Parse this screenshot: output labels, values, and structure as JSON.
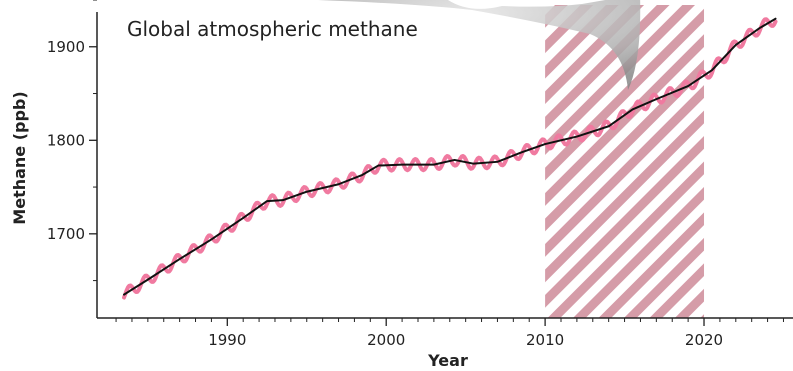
{
  "chart_data": {
    "type": "line",
    "title": "Global atmospheric methane",
    "xlabel": "Year",
    "ylabel": "Methane (ppb)",
    "xlim": [
      1981.8,
      2025.6
    ],
    "ylim": [
      1610,
      1950
    ],
    "x_ticks": [
      1990,
      2000,
      2010,
      2020
    ],
    "y_ticks": [
      1700,
      1800,
      1900
    ],
    "grid": false,
    "highlight_region": {
      "x_start": 2010,
      "x_end": 2020,
      "fill": "hatched",
      "color": "#c9808f"
    },
    "series": [
      {
        "style": "monthly, seasonal oscillation",
        "color": "#f07aa0",
        "seasonal_amplitude": 6
      },
      {
        "style": "trend",
        "color": "#111111",
        "x": [
          1983.5,
          1985,
          1987,
          1989,
          1991,
          1992.5,
          1993.5,
          1995,
          1997,
          1998.5,
          1999.5,
          2001,
          2003,
          2004.3,
          2005.5,
          2007,
          2008.5,
          2010,
          2012,
          2014,
          2015.5,
          2017,
          2019,
          2020.5,
          2022,
          2023.5,
          2024.5
        ],
        "y": [
          1635,
          1651,
          1673,
          1694,
          1717,
          1735,
          1736,
          1745,
          1753,
          1763,
          1773,
          1774,
          1774,
          1779,
          1775,
          1777,
          1787,
          1796,
          1804,
          1815,
          1833,
          1844,
          1858,
          1875,
          1902,
          1920,
          1930
        ]
      }
    ]
  }
}
